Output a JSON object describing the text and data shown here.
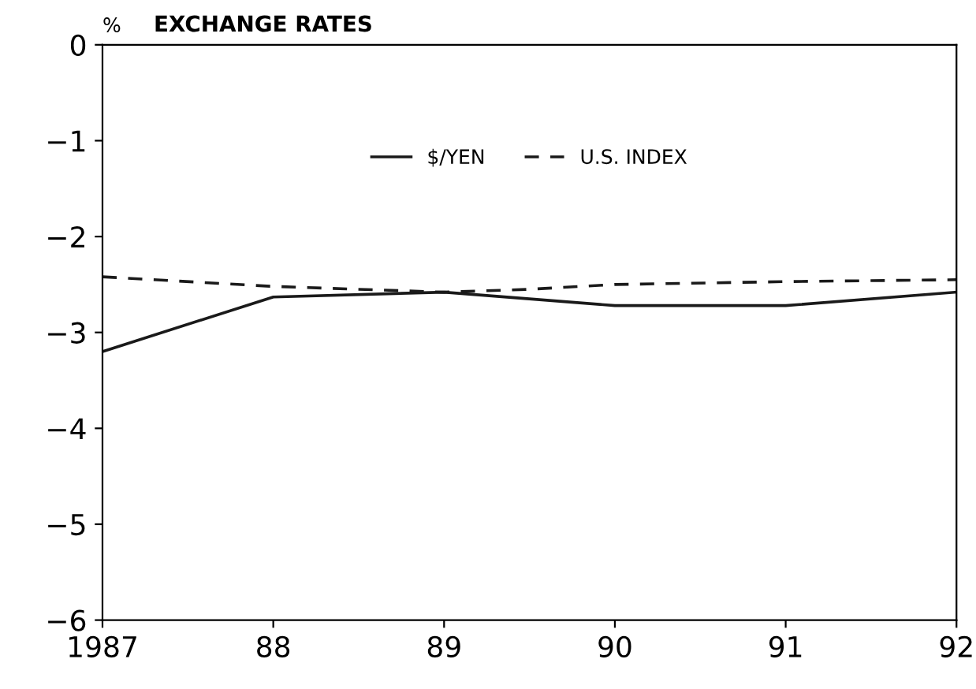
{
  "chart_data": {
    "type": "line",
    "title": "EXCHANGE RATES",
    "ylabel": "%",
    "x": [
      1987,
      1988,
      1989,
      1989.5,
      1990,
      1991,
      1992
    ],
    "series": [
      {
        "name": "$/YEN",
        "color": "#1a1a1a",
        "line_style": "solid",
        "values": [
          -3.2,
          -2.63,
          -2.58,
          -2.65,
          -2.72,
          -2.72,
          -2.58
        ]
      },
      {
        "name": "U.S. INDEX",
        "color": "#1a1a1a",
        "line_style": "dashed",
        "values": [
          -2.42,
          -2.52,
          -2.58,
          -2.55,
          -2.5,
          -2.47,
          -2.45
        ]
      }
    ],
    "xlim": [
      1987,
      1992
    ],
    "xticks": [
      1987,
      {
        "value": 1988,
        "label": "88"
      },
      {
        "value": 1989,
        "label": "89"
      },
      {
        "value": 1990,
        "label": "90"
      },
      {
        "value": 1991,
        "label": "91"
      },
      {
        "value": 1992,
        "label": "92"
      }
    ],
    "ylim": [
      -6,
      0
    ],
    "yticks": [
      0,
      -1,
      -2,
      -3,
      -4,
      -5,
      -6
    ],
    "grid": false,
    "legend": "top",
    "marker": "none"
  }
}
